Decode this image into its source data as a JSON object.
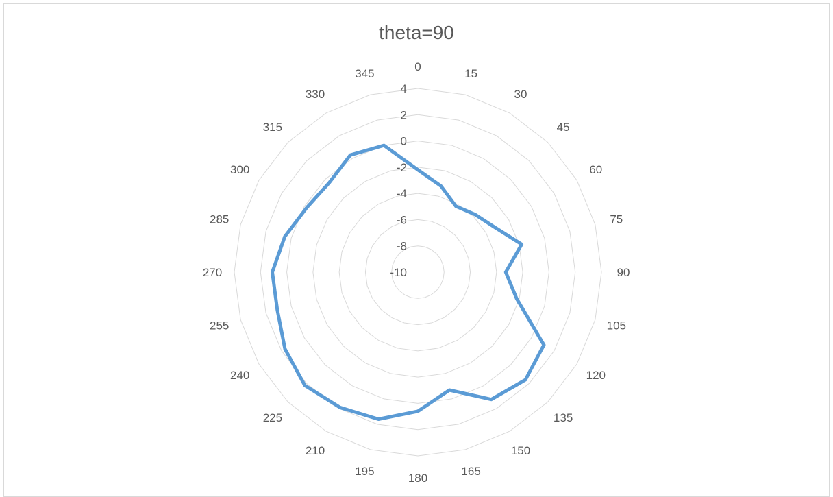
{
  "chart_data": {
    "type": "radar",
    "title": "theta=90",
    "angle_unit": "degrees",
    "categories": [
      "0",
      "15",
      "30",
      "45",
      "60",
      "75",
      "90",
      "105",
      "120",
      "135",
      "150",
      "165",
      "180",
      "195",
      "210",
      "225",
      "240",
      "255",
      "270",
      "285",
      "300",
      "315",
      "330",
      "345"
    ],
    "radial_ticks": [
      "4",
      "2",
      "0",
      "-2",
      "-4",
      "-6",
      "-8",
      "-10"
    ],
    "rlim": [
      -10,
      4
    ],
    "grid": true,
    "legend": "none",
    "series": [
      {
        "color": "#5b9bd5",
        "values": [
          -2.2,
          -3.2,
          -4.2,
          -3.8,
          -3.2,
          -1.8,
          -3.3,
          -2.2,
          1.1,
          1.6,
          1.2,
          -0.7,
          0.6,
          1.6,
          1.9,
          2.2,
          1.7,
          1.1,
          1.1,
          0.5,
          -0.2,
          -0.4,
          0.3,
          0.0
        ]
      }
    ]
  }
}
